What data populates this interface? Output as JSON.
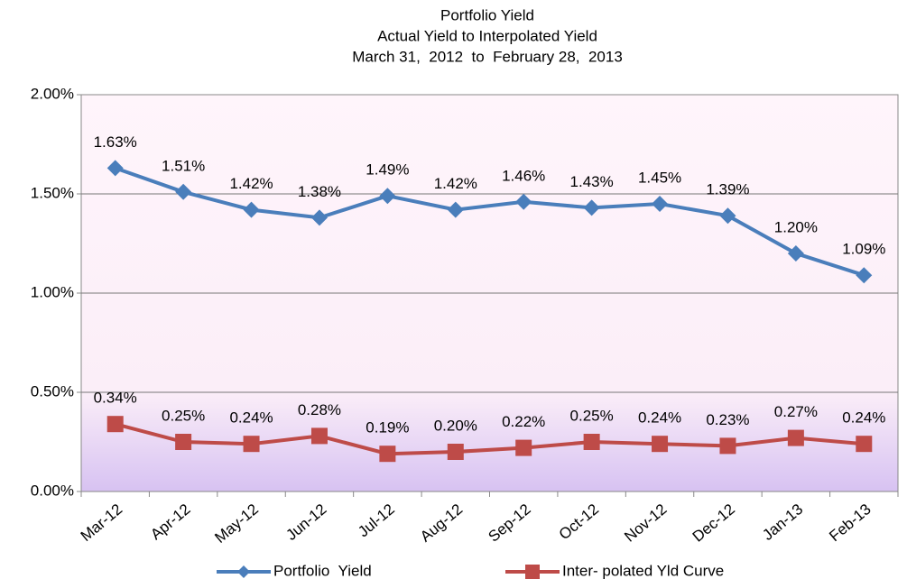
{
  "chart_data": {
    "type": "line",
    "title": [
      "Portfolio Yield",
      "Actual Yield to Interpolated Yield",
      "March 31,  2012  to  February 28,  2013"
    ],
    "categories": [
      "Mar-12",
      "Apr-12",
      "May-12",
      "Jun-12",
      "Jul-12",
      "Aug-12",
      "Sep-12",
      "Oct-12",
      "Nov-12",
      "Dec-12",
      "Jan-13",
      "Feb-13"
    ],
    "series": [
      {
        "name": "Portfolio  Yield",
        "color": "#4a7ebb",
        "marker": "diamond",
        "values": [
          1.63,
          1.51,
          1.42,
          1.38,
          1.49,
          1.42,
          1.46,
          1.43,
          1.45,
          1.39,
          1.2,
          1.09
        ],
        "value_labels": [
          "1.63%",
          "1.51%",
          "1.42%",
          "1.38%",
          "1.49%",
          "1.42%",
          "1.46%",
          "1.43%",
          "1.45%",
          "1.39%",
          "1.20%",
          "1.09%"
        ]
      },
      {
        "name": "Inter- polated Yld Curve",
        "color": "#be4b48",
        "marker": "square",
        "values": [
          0.34,
          0.25,
          0.24,
          0.28,
          0.19,
          0.2,
          0.22,
          0.25,
          0.24,
          0.23,
          0.27,
          0.24
        ],
        "value_labels": [
          "0.34%",
          "0.25%",
          "0.24%",
          "0.28%",
          "0.19%",
          "0.20%",
          "0.22%",
          "0.25%",
          "0.24%",
          "0.23%",
          "0.27%",
          "0.24%"
        ]
      }
    ],
    "ylim": [
      0,
      2
    ],
    "yticks": [
      {
        "value": 0,
        "label": "0.00%"
      },
      {
        "value": 0.5,
        "label": "0.50%"
      },
      {
        "value": 1,
        "label": "1.00%"
      },
      {
        "value": 1.5,
        "label": "1.50%"
      },
      {
        "value": 2,
        "label": "2.00%"
      }
    ],
    "grid": true,
    "legend": "bottom"
  }
}
